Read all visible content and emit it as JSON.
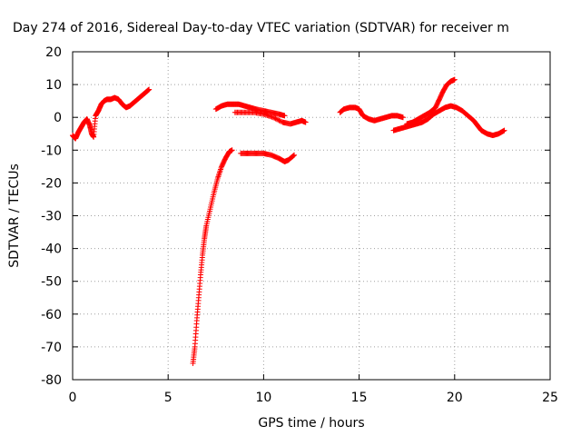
{
  "chart_data": {
    "type": "scatter",
    "title": "Day 274 of 2016, Sidereal Day-to-day VTEC variation (SDTVAR) for receiver m",
    "xlabel": "GPS time / hours",
    "ylabel": "SDTVAR / TECUs",
    "xlim": [
      0,
      25
    ],
    "ylim": [
      -80,
      20
    ],
    "xticks": [
      0,
      5,
      10,
      15,
      20,
      25
    ],
    "yticks": [
      -80,
      -70,
      -60,
      -50,
      -40,
      -30,
      -20,
      -10,
      0,
      10,
      20
    ],
    "grid": true,
    "marker": "+",
    "series": [
      {
        "color": "#ff0000",
        "segments": [
          [
            [
              0.0,
              -5.5
            ],
            [
              0.15,
              -6.5
            ],
            [
              0.3,
              -4.5
            ],
            [
              0.45,
              -3
            ],
            [
              0.6,
              -1.5
            ],
            [
              0.75,
              -0.5
            ],
            [
              0.9,
              -2.5
            ],
            [
              1.0,
              -5
            ],
            [
              1.1,
              -6
            ],
            [
              1.2,
              0.5
            ],
            [
              1.35,
              2
            ],
            [
              1.5,
              4
            ],
            [
              1.65,
              5
            ],
            [
              1.8,
              5.5
            ],
            [
              2.0,
              5.5
            ],
            [
              2.2,
              6
            ],
            [
              2.4,
              5.5
            ],
            [
              2.6,
              4
            ],
            [
              2.8,
              3
            ],
            [
              3.0,
              3.5
            ],
            [
              3.2,
              4.5
            ],
            [
              3.4,
              5.5
            ],
            [
              3.6,
              6.5
            ],
            [
              3.8,
              7.5
            ],
            [
              4.0,
              8.5
            ]
          ],
          [
            [
              6.3,
              -75
            ],
            [
              6.4,
              -70
            ],
            [
              6.5,
              -62
            ],
            [
              6.6,
              -55
            ],
            [
              6.7,
              -48
            ],
            [
              6.8,
              -42
            ],
            [
              6.9,
              -37
            ],
            [
              7.0,
              -33
            ],
            [
              7.2,
              -28
            ],
            [
              7.4,
              -23
            ],
            [
              7.6,
              -18.5
            ],
            [
              7.8,
              -15
            ],
            [
              8.0,
              -12.5
            ],
            [
              8.2,
              -10.5
            ],
            [
              8.35,
              -10
            ]
          ],
          [
            [
              8.8,
              -11
            ],
            [
              9.2,
              -11
            ],
            [
              9.6,
              -11
            ],
            [
              10.0,
              -11
            ],
            [
              10.4,
              -11.5
            ],
            [
              10.8,
              -12.5
            ],
            [
              11.1,
              -13.5
            ],
            [
              11.3,
              -13
            ],
            [
              11.6,
              -11.5
            ]
          ],
          [
            [
              7.5,
              2.5
            ],
            [
              7.8,
              3.5
            ],
            [
              8.1,
              4
            ],
            [
              8.4,
              4
            ],
            [
              8.7,
              4
            ],
            [
              9.0,
              3.5
            ],
            [
              9.3,
              3
            ],
            [
              9.6,
              2.5
            ],
            [
              10.0,
              2
            ],
            [
              10.4,
              1.5
            ],
            [
              10.8,
              1
            ],
            [
              11.1,
              0.5
            ]
          ],
          [
            [
              8.5,
              1.5
            ],
            [
              9.0,
              1.5
            ],
            [
              9.5,
              1.5
            ],
            [
              10.0,
              1
            ],
            [
              10.5,
              0
            ],
            [
              11.0,
              -1.5
            ],
            [
              11.4,
              -2
            ],
            [
              11.7,
              -1.5
            ],
            [
              12.0,
              -1
            ],
            [
              12.2,
              -1.5
            ]
          ],
          [
            [
              14.0,
              1.5
            ],
            [
              14.2,
              2.5
            ],
            [
              14.5,
              3
            ],
            [
              14.8,
              3
            ],
            [
              15.0,
              2.5
            ],
            [
              15.2,
              0.5
            ],
            [
              15.5,
              -0.5
            ],
            [
              15.8,
              -1
            ],
            [
              16.1,
              -0.5
            ],
            [
              16.4,
              0
            ],
            [
              16.7,
              0.5
            ],
            [
              17.0,
              0.5
            ],
            [
              17.3,
              0
            ]
          ],
          [
            [
              16.8,
              -4
            ],
            [
              17.1,
              -3.5
            ],
            [
              17.4,
              -3
            ],
            [
              17.7,
              -2.5
            ],
            [
              18.0,
              -2
            ],
            [
              18.3,
              -1.5
            ],
            [
              18.6,
              -0.5
            ],
            [
              18.9,
              1
            ],
            [
              19.2,
              2
            ],
            [
              19.5,
              3
            ],
            [
              19.8,
              3.5
            ],
            [
              20.1,
              3
            ],
            [
              20.4,
              2
            ],
            [
              20.7,
              0.5
            ],
            [
              21.0,
              -1
            ],
            [
              21.2,
              -2.5
            ],
            [
              21.4,
              -4
            ],
            [
              21.7,
              -5
            ],
            [
              22.0,
              -5.5
            ],
            [
              22.3,
              -5
            ],
            [
              22.6,
              -4
            ]
          ],
          [
            [
              17.5,
              -2
            ],
            [
              17.8,
              -1.5
            ],
            [
              18.1,
              -0.5
            ],
            [
              18.4,
              0.5
            ],
            [
              18.7,
              1.5
            ],
            [
              19.0,
              3
            ],
            [
              19.2,
              5.5
            ],
            [
              19.4,
              8
            ],
            [
              19.6,
              10
            ],
            [
              19.8,
              11
            ],
            [
              20.0,
              11.5
            ]
          ]
        ]
      }
    ]
  }
}
